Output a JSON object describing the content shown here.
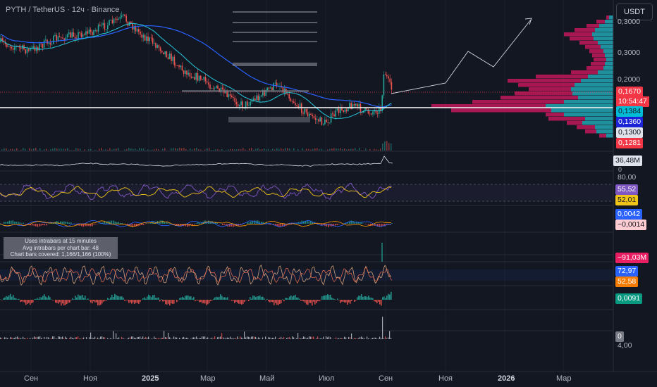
{
  "header": {
    "symbol_title": "PYTH / TetherUS · 12ч · Binance",
    "currency_button": "USDT"
  },
  "price_scale": {
    "ticks": [
      "0,3000",
      "0,2000"
    ],
    "top_tick_partial": "0,3000"
  },
  "price_tags": {
    "last_price": "0,1670",
    "countdown": "10:54:47",
    "teal_level": "0,1384",
    "blue_level": "0,1360",
    "gray_level": "0,1300",
    "red_level": "0,1281"
  },
  "indicator_tags": {
    "volume": "36,48M",
    "volume_zero": "0",
    "rsi_upper": "80,00",
    "rsi_value": "55,52",
    "rsi_signal": "52,01",
    "macd_value": "0,0042",
    "macd_signal": "−0,0014",
    "delta_value": "−91,03M",
    "stoch_k": "72,97",
    "stoch_d": "52,58",
    "momentum": "0,0091",
    "last_zero": "0",
    "last_scale": "4,00"
  },
  "intrabar_info": {
    "line1": "Uses intrabars at 15 minutes",
    "line2": "Avg intrabars per chart bar: 48",
    "line3": "Chart bars covered: 1,166/1,166 (100%)"
  },
  "x_axis": {
    "labels": [
      "Сен",
      "Ноя",
      "2025",
      "Мар",
      "Май",
      "Июл",
      "Сен",
      "Ноя",
      "2026",
      "Мар"
    ]
  },
  "colors": {
    "background": "#131722",
    "up": "#26a69a",
    "down": "#ef5350",
    "profile_red": "#c2185b",
    "profile_teal": "#22a6b3",
    "ma_blue": "#2962ff",
    "ma_teal": "#26c6da",
    "rsi_line": "#7e57c2",
    "rsi_signal": "#f0c419"
  }
}
